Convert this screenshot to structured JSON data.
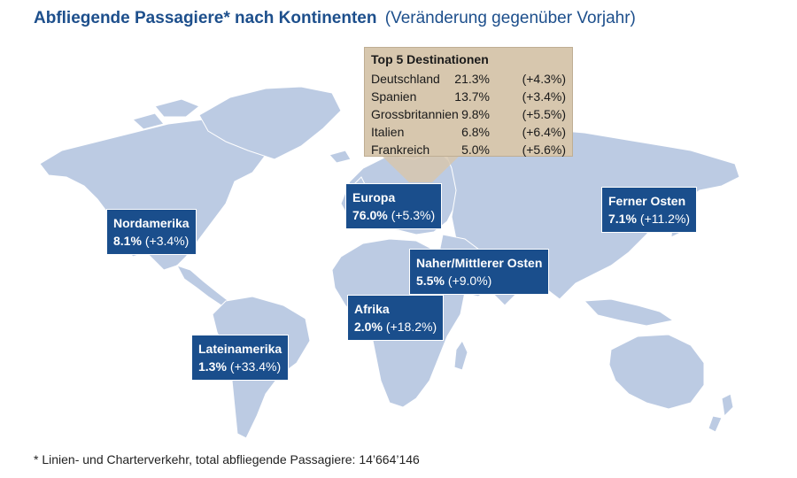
{
  "title": {
    "main": "Abfliegende Passagiere* nach Kontinenten",
    "sub": "(Veränderung gegenüber Vorjahr)"
  },
  "colors": {
    "land": "#bccbe3",
    "callout": "#1a4e8c",
    "top5_box": "#d7c7ae",
    "title": "#1d4f8c"
  },
  "regions": {
    "nordamerika": {
      "name": "Nordamerika",
      "share": "8.1%",
      "change": "(+3.4%)"
    },
    "lateinamerika": {
      "name": "Lateinamerika",
      "share": "1.3%",
      "change": "(+33.4%)"
    },
    "europa": {
      "name": "Europa",
      "share": "76.0%",
      "change": "(+5.3%)"
    },
    "afrika": {
      "name": "Afrika",
      "share": "2.0%",
      "change": "(+18.2%)"
    },
    "naher_osten": {
      "name": "Naher/Mittlerer Osten",
      "share": "5.5%",
      "change": "(+9.0%)"
    },
    "ferner_osten": {
      "name": "Ferner Osten",
      "share": "7.1%",
      "change": "(+11.2%)"
    }
  },
  "top5": {
    "heading": "Top 5 Destinationen",
    "rows": [
      {
        "country": "Deutschland",
        "share": "21.3%",
        "change": "(+4.3%)"
      },
      {
        "country": "Spanien",
        "share": "13.7%",
        "change": "(+3.4%)"
      },
      {
        "country": "Grossbritannien",
        "share": "9.8%",
        "change": "(+5.5%)"
      },
      {
        "country": "Italien",
        "share": "6.8%",
        "change": "(+6.4%)"
      },
      {
        "country": "Frankreich",
        "share": "5.0%",
        "change": "(+5.6%)"
      }
    ]
  },
  "footnote": "* Linien- und Charterverkehr, total abfliegende Passagiere: 14’664’146"
}
